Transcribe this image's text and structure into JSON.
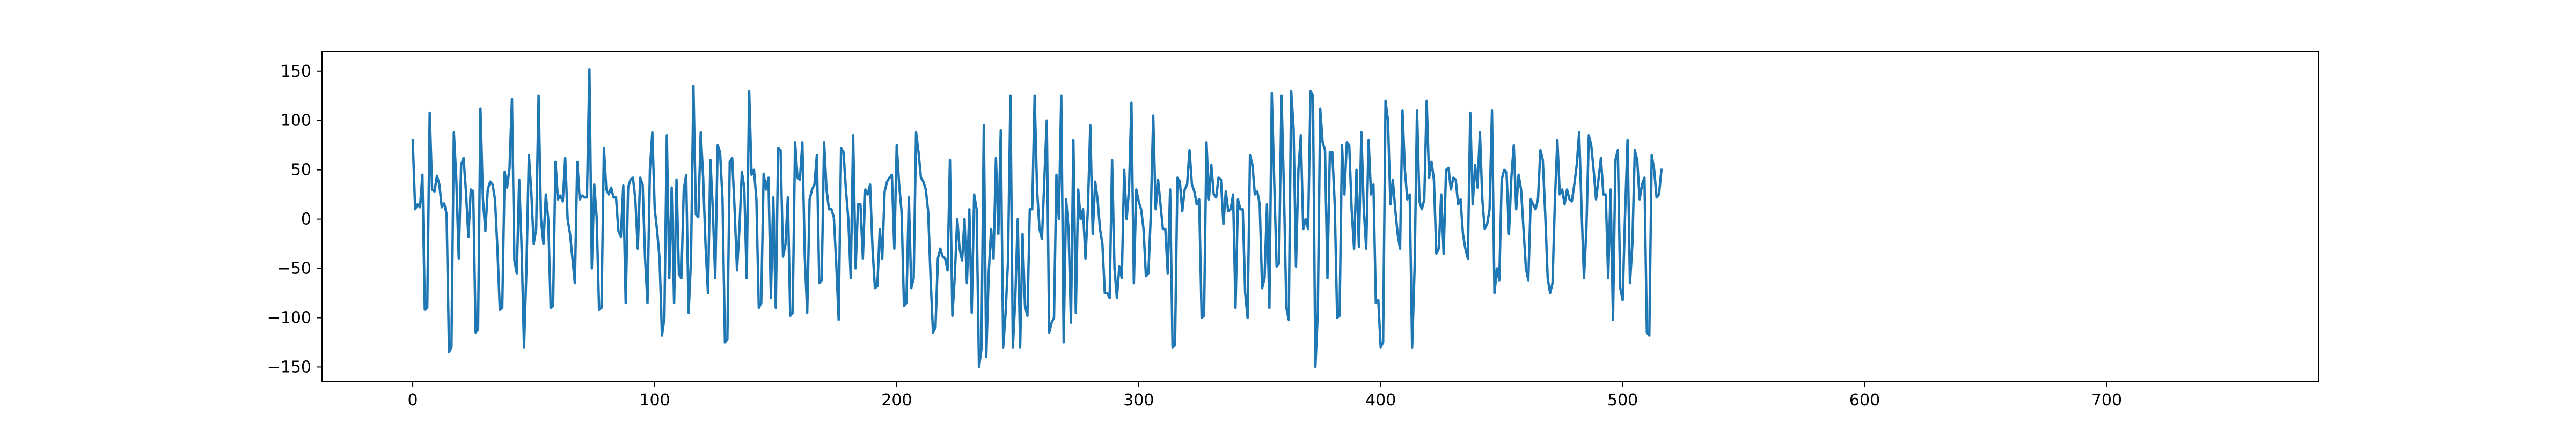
{
  "chart_data": {
    "type": "line",
    "title": "",
    "xlabel": "",
    "ylabel": "",
    "xlim": [
      -37.5,
      787.5
    ],
    "ylim": [
      -165,
      170
    ],
    "x_ticks": [
      0,
      100,
      200,
      300,
      400,
      500,
      600,
      700
    ],
    "y_ticks": [
      -150,
      -100,
      -50,
      0,
      50,
      100,
      150
    ],
    "x_tick_labels": [
      "0",
      "100",
      "200",
      "300",
      "400",
      "500",
      "600",
      "700"
    ],
    "y_tick_labels": [
      "−150",
      "−100",
      "−50",
      "0",
      "50",
      "100",
      "150"
    ],
    "grid": false,
    "legend": "none",
    "series": [
      {
        "color": "#1f77b4",
        "x_start": 0,
        "x_step": 1,
        "values": [
          80,
          10,
          15,
          12,
          45,
          -92,
          -90,
          108,
          30,
          28,
          44,
          35,
          12,
          16,
          5,
          -135,
          -130,
          88,
          40,
          -40,
          55,
          62,
          28,
          -18,
          30,
          28,
          -115,
          -112,
          112,
          20,
          -12,
          30,
          38,
          35,
          20,
          -30,
          -92,
          -90,
          48,
          32,
          52,
          122,
          -42,
          -55,
          40,
          -30,
          -130,
          -50,
          65,
          28,
          -25,
          -10,
          125,
          0,
          -25,
          25,
          0,
          -90,
          -88,
          58,
          20,
          24,
          18,
          62,
          0,
          -15,
          -40,
          -65,
          58,
          20,
          24,
          22,
          22,
          152,
          -50,
          35,
          2,
          -92,
          -90,
          72,
          30,
          25,
          32,
          22,
          22,
          -12,
          -18,
          34,
          -85,
          32,
          40,
          42,
          20,
          -30,
          42,
          35,
          -40,
          -85,
          50,
          88,
          10,
          -12,
          -40,
          -118,
          -100,
          85,
          -60,
          32,
          -85,
          40,
          -56,
          -60,
          30,
          45,
          -95,
          -40,
          135,
          5,
          2,
          88,
          42,
          -27,
          -75,
          60,
          10,
          -60,
          75,
          68,
          20,
          -125,
          -122,
          58,
          62,
          10,
          -52,
          -10,
          48,
          32,
          -60,
          130,
          45,
          50,
          20,
          -90,
          -85,
          46,
          30,
          42,
          -80,
          22,
          -90,
          72,
          70,
          -38,
          -26,
          22,
          -98,
          -95,
          78,
          42,
          40,
          78,
          -38,
          -95,
          20,
          30,
          35,
          65,
          -65,
          -62,
          78,
          30,
          10,
          10,
          2,
          -45,
          -102,
          72,
          68,
          30,
          0,
          -60,
          85,
          -50,
          15,
          15,
          -40,
          30,
          25,
          35,
          -30,
          -70,
          -68,
          -10,
          -40,
          28,
          38,
          42,
          45,
          -30,
          75,
          35,
          8,
          -88,
          -85,
          22,
          -70,
          -60,
          88,
          68,
          42,
          38,
          30,
          8,
          -60,
          -115,
          -110,
          -40,
          -30,
          -38,
          -40,
          -52,
          60,
          -98,
          -58,
          0,
          -30,
          -42,
          0,
          -65,
          10,
          -95,
          25,
          10,
          -150,
          -132,
          95,
          -140,
          -55,
          -10,
          -40,
          62,
          -15,
          90,
          -130,
          -95,
          -42,
          125,
          -130,
          -80,
          0,
          -130,
          -15,
          -88,
          -98,
          10,
          10,
          125,
          30,
          -10,
          -20,
          40,
          100,
          -115,
          -105,
          -100,
          45,
          0,
          125,
          -125,
          20,
          -10,
          -105,
          80,
          -95,
          30,
          0,
          10,
          -40,
          10,
          95,
          -15,
          38,
          20,
          -10,
          -25,
          -75,
          -75,
          -80,
          60,
          -50,
          -80,
          -48,
          -60,
          50,
          0,
          30,
          118,
          -65,
          30,
          18,
          10,
          -10,
          -58,
          -55,
          5,
          105,
          10,
          40,
          15,
          -10,
          -10,
          -55,
          30,
          -130,
          -128,
          42,
          38,
          8,
          30,
          35,
          70,
          35,
          28,
          15,
          20,
          -100,
          -98,
          78,
          20,
          55,
          25,
          22,
          42,
          40,
          -5,
          28,
          8,
          10,
          25,
          -90,
          20,
          10,
          10,
          -75,
          -100,
          65,
          55,
          25,
          28,
          15,
          -70,
          -60,
          15,
          -90,
          128,
          38,
          -48,
          -45,
          125,
          30,
          -90,
          -102,
          130,
          92,
          -48,
          50,
          85,
          -10,
          0,
          -10,
          130,
          125,
          -150,
          -95,
          112,
          78,
          70,
          -60,
          68,
          68,
          15,
          -100,
          -98,
          75,
          25,
          78,
          75,
          10,
          -30,
          50,
          -28,
          88,
          10,
          -30,
          80,
          25,
          35,
          -85,
          -82,
          -130,
          -125,
          120,
          100,
          15,
          40,
          10,
          -15,
          -30,
          110,
          50,
          20,
          25,
          -130,
          -50,
          110,
          18,
          10,
          20,
          120,
          42,
          58,
          40,
          -35,
          -30,
          25,
          -35,
          50,
          52,
          30,
          42,
          40,
          15,
          20,
          -15,
          -30,
          -40,
          108,
          15,
          55,
          32,
          88,
          20,
          -10,
          -5,
          10,
          110,
          -75,
          -50,
          -62,
          40,
          50,
          48,
          -15,
          42,
          75,
          10,
          45,
          30,
          -10,
          -50,
          -62,
          20,
          15,
          10,
          20,
          70,
          60,
          5,
          -60,
          -75,
          -65,
          20,
          80,
          25,
          30,
          15,
          30,
          20,
          18,
          35,
          55,
          88,
          10,
          -60,
          -10,
          85,
          75,
          50,
          20,
          40,
          62,
          25,
          25,
          -60,
          30,
          -102,
          60,
          70,
          -70,
          -82,
          5,
          80,
          -65,
          -25,
          70,
          60,
          20,
          35,
          42,
          -115,
          -118,
          65,
          50,
          22,
          25,
          50
        ]
      }
    ]
  }
}
